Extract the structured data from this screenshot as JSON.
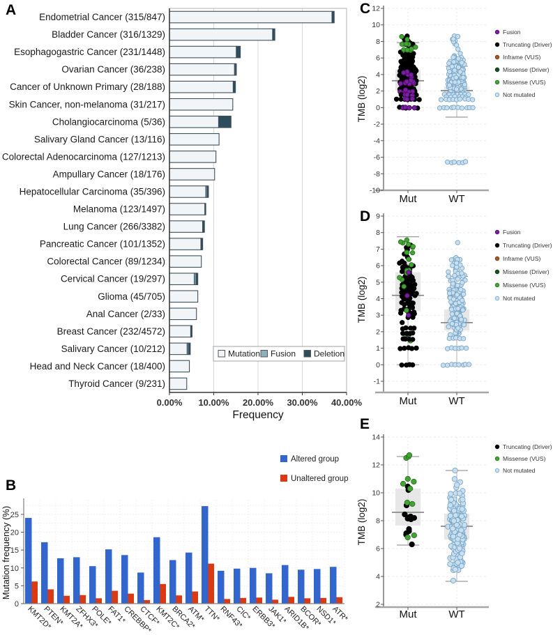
{
  "figure": {
    "background": "#ffffff"
  },
  "point_styles": {
    "fusion": {
      "label": "Fusion",
      "fill": "#7a1fa2",
      "stroke": "#4a0d66"
    },
    "truncating_driver": {
      "label": "Truncating (Driver)",
      "fill": "#000000",
      "stroke": "#000000"
    },
    "inframe_vus": {
      "label": "Inframe (VUS)",
      "fill": "#a05a2c",
      "stroke": "#6e3a14"
    },
    "missense_driver": {
      "label": "Missense (Driver)",
      "fill": "#14521c",
      "stroke": "#0b3511"
    },
    "missense_vus": {
      "label": "Missense (VUS)",
      "fill": "#42a432",
      "stroke": "#2a7220"
    },
    "not_mutated": {
      "label": "Not mutated",
      "fill": "#c9dff0",
      "stroke": "#79a7c7"
    }
  },
  "chart_data": [
    {
      "id": "A",
      "panel_label": "A",
      "type": "bar",
      "orientation": "horizontal",
      "stacked": true,
      "xlabel": "Frequency",
      "x_ticks": [
        "0.00%",
        "10.00%",
        "20.00%",
        "30.00%",
        "40.00%"
      ],
      "xlim": [
        0,
        40
      ],
      "bar_outline": "#3d4f5a",
      "legend": [
        {
          "label": "Mutation",
          "color": "#f1f5f8"
        },
        {
          "label": "Fusion",
          "color": "#8fafc0"
        },
        {
          "label": "Deletion",
          "color": "#2d4d5c"
        }
      ],
      "categories": [
        "Endometrial Cancer (315/847)",
        "Bladder Cancer (316/1329)",
        "Esophagogastric Cancer (231/1448)",
        "Ovarian Cancer (36/238)",
        "Cancer of Unknown Primary (28/188)",
        "Skin Cancer, non-melanoma (31/217)",
        "Cholangiocarcinoma (5/36)",
        "Salivary Gland Cancer (13/116)",
        "Colorectal Adenocarcinoma (127/1213)",
        "Ampullary Cancer (18/176)",
        "Hepatocellular Carcinoma (35/396)",
        "Melanoma (123/1497)",
        "Lung Cancer (266/3382)",
        "Pancreatic Cancer (101/1352)",
        "Colorectal Cancer (89/1234)",
        "Cervical Cancer (19/297)",
        "Glioma (45/705)",
        "Anal Cancer (2/33)",
        "Breast Cancer (232/4572)",
        "Salivary Cancer (10/212)",
        "Head and Neck Cancer (18/400)",
        "Thyroid Cancer (9/231)"
      ],
      "series": [
        {
          "name": "Mutation",
          "color": "#f1f5f8",
          "values": [
            36.7,
            23.3,
            15.1,
            14.7,
            14.4,
            14.3,
            11.1,
            11.2,
            10.5,
            10.2,
            8.2,
            8.0,
            7.5,
            7.1,
            7.2,
            5.6,
            6.4,
            6.1,
            4.8,
            4.0,
            4.5,
            3.9
          ]
        },
        {
          "name": "Fusion",
          "color": "#8fafc0",
          "values": [
            0,
            0,
            0,
            0.2,
            0,
            0,
            0,
            0,
            0,
            0,
            0.3,
            0,
            0,
            0,
            0,
            0.4,
            0,
            0,
            0,
            0.3,
            0,
            0
          ]
        },
        {
          "name": "Deletion",
          "color": "#2d4d5c",
          "values": [
            0.5,
            0.5,
            0.9,
            0.2,
            0.5,
            0,
            2.8,
            0,
            0,
            0,
            0.3,
            0.2,
            0.4,
            0.4,
            0,
            0.4,
            0,
            0,
            0.3,
            0.4,
            0,
            0
          ]
        }
      ]
    },
    {
      "id": "B",
      "panel_label": "B",
      "type": "bar",
      "grouped": true,
      "ylabel": "Mutation frequency (%)",
      "y_ticks": [
        0,
        5,
        10,
        15,
        20,
        25
      ],
      "ylim": [
        0,
        28.3
      ],
      "categories": [
        "KMT2D*",
        "PTEN*",
        "KMT2A*",
        "ZFHX3*",
        "POLE*",
        "FAT1*",
        "CREBBP*",
        "CTCF*",
        "KMT2C*",
        "BRCA2*",
        "ATM*",
        "TTN*",
        "RNF43*",
        "CIC*",
        "ERBB3*",
        "JAK1*",
        "ARID1B*",
        "BCOR*",
        "NSD1*",
        "ATR*"
      ],
      "series": [
        {
          "name": "Altered group",
          "color": "#3366cc",
          "values": [
            24,
            17.2,
            12.7,
            13,
            10.5,
            15.2,
            13.6,
            8.7,
            18.6,
            12.2,
            14.3,
            27.3,
            9.2,
            9.8,
            10,
            8.5,
            10.8,
            9.5,
            9.7,
            10.3
          ]
        },
        {
          "name": "Unaltered group",
          "color": "#dc3912",
          "values": [
            6.2,
            4,
            2.2,
            2.4,
            1.5,
            3.6,
            2.8,
            1,
            5.5,
            2.3,
            3.4,
            11.2,
            1.3,
            1.6,
            1.7,
            1.1,
            1.9,
            1.5,
            1.6,
            1.8
          ]
        }
      ]
    },
    {
      "id": "C",
      "panel_label": "C",
      "type": "scatter",
      "variant": "strip-box",
      "ylabel": "TMB (log2)",
      "ylim": [
        -10,
        12
      ],
      "ytick_step": 2,
      "x_categories": [
        "Mut",
        "WT"
      ],
      "legend": [
        "fusion",
        "truncating_driver",
        "inframe_vus",
        "missense_driver",
        "missense_vus",
        "not_mutated"
      ],
      "groups": [
        {
          "name": "Mut",
          "box": {
            "q1": 2.05,
            "median": 3.25,
            "q3": 4.6,
            "whisker_low": 0,
            "whisker_high": 7.85
          },
          "clouds": [
            {
              "style": "truncating_driver",
              "n": 225,
              "dist": "normal",
              "mean": 3.9,
              "sd": 1.3,
              "min": 1.45,
              "max": 6.6
            },
            {
              "style": "truncating_driver",
              "n": 15,
              "dist": "uniform",
              "min": 6.6,
              "max": 8.85
            },
            {
              "style": "fusion",
              "n": 18,
              "dist": "normal",
              "mean": 2.9,
              "sd": 1.0,
              "min": 1.5,
              "max": 4.6
            },
            {
              "style": "missense_vus",
              "n": 11,
              "dist": "uniform",
              "min": 6.9,
              "max": 8.6
            },
            {
              "style": "truncating_driver",
              "n": 5,
              "dist": "row",
              "y": 1.5
            },
            {
              "style": "fusion",
              "n": 3,
              "dist": "row",
              "y": 1.5
            },
            {
              "style": "truncating_driver",
              "n": 7,
              "dist": "row",
              "y": 1.0
            },
            {
              "style": "fusion",
              "n": 3,
              "dist": "row",
              "y": 1.0
            },
            {
              "style": "truncating_driver",
              "n": 6,
              "dist": "row",
              "y": 0
            },
            {
              "style": "fusion",
              "n": 4,
              "dist": "row",
              "y": 0
            }
          ]
        },
        {
          "name": "WT",
          "box": {
            "q1": 1.35,
            "median": 2.05,
            "q3": 2.55,
            "whisker_low": -1.15,
            "whisker_high": 5.0
          },
          "clouds": [
            {
              "style": "not_mutated",
              "n": 320,
              "dist": "normal",
              "mean": 3.0,
              "sd": 1.5,
              "min": 1.25,
              "max": 6.8
            },
            {
              "style": "not_mutated",
              "n": 9,
              "dist": "uniform",
              "min": 6.9,
              "max": 8.85
            },
            {
              "style": "not_mutated",
              "n": 7,
              "dist": "row",
              "y": 1.6
            },
            {
              "style": "not_mutated",
              "n": 6,
              "dist": "row",
              "y": 1.3
            },
            {
              "style": "not_mutated",
              "n": 9,
              "dist": "row",
              "y": 1.0
            },
            {
              "style": "not_mutated",
              "n": 10,
              "dist": "row",
              "y": 0
            },
            {
              "style": "not_mutated",
              "n": 6,
              "dist": "row",
              "y": -6.6
            }
          ]
        }
      ]
    },
    {
      "id": "D",
      "panel_label": "D",
      "type": "scatter",
      "variant": "strip-box",
      "ylabel": "TMB (log2)",
      "ylim": [
        -1,
        9
      ],
      "ytick_step": 1,
      "x_categories": [
        "Mut",
        "WT"
      ],
      "legend": [
        "fusion",
        "truncating_driver",
        "inframe_vus",
        "missense_driver",
        "missense_vus",
        "not_mutated"
      ],
      "groups": [
        {
          "name": "Mut",
          "box": {
            "q1": 3.25,
            "median": 4.2,
            "q3": 5.6,
            "whisker_low": 0,
            "whisker_high": 7.75
          },
          "clouds": [
            {
              "style": "truncating_driver",
              "n": 125,
              "dist": "normal",
              "mean": 4.7,
              "sd": 1.15,
              "min": 2.4,
              "max": 7.4
            },
            {
              "style": "missense_vus",
              "n": 17,
              "dist": "uniform",
              "min": 4.6,
              "max": 7.75
            },
            {
              "style": "missense_vus",
              "n": 5,
              "dist": "uniform",
              "min": 1.0,
              "max": 3.3
            },
            {
              "style": "fusion",
              "n": 1,
              "dist": "row",
              "y": 5.6
            },
            {
              "style": "fusion",
              "n": 1,
              "dist": "row",
              "y": 4.2
            },
            {
              "style": "fusion",
              "n": 1,
              "dist": "row",
              "y": 3.0
            },
            {
              "style": "fusion",
              "n": 1,
              "dist": "row",
              "y": 1.6
            },
            {
              "style": "truncating_driver",
              "n": 4,
              "dist": "row",
              "y": 2.2
            },
            {
              "style": "truncating_driver",
              "n": 4,
              "dist": "row",
              "y": 1.9
            },
            {
              "style": "truncating_driver",
              "n": 4,
              "dist": "row",
              "y": 1.55
            },
            {
              "style": "truncating_driver",
              "n": 5,
              "dist": "row",
              "y": 1.0
            },
            {
              "style": "truncating_driver",
              "n": 4,
              "dist": "row",
              "y": 0
            }
          ]
        },
        {
          "name": "WT",
          "box": {
            "q1": 2.08,
            "median": 2.55,
            "q3": 3.35,
            "whisker_low": 0,
            "whisker_high": 5.35
          },
          "clouds": [
            {
              "style": "not_mutated",
              "n": 245,
              "dist": "normal",
              "mean": 3.5,
              "sd": 1.25,
              "min": 1.8,
              "max": 6.6
            },
            {
              "style": "not_mutated",
              "n": 1,
              "dist": "row",
              "y": 7.4
            },
            {
              "style": "not_mutated",
              "n": 5,
              "dist": "row",
              "y": 1.6
            },
            {
              "style": "not_mutated",
              "n": 6,
              "dist": "row",
              "y": 1.0
            },
            {
              "style": "not_mutated",
              "n": 8,
              "dist": "row",
              "y": 0
            }
          ]
        }
      ]
    },
    {
      "id": "E",
      "panel_label": "E",
      "type": "scatter",
      "variant": "strip-box",
      "ylabel": "TMB (log2)",
      "ylim": [
        2,
        14
      ],
      "ytick_step": 2,
      "x_categories": [
        "Mut",
        "WT"
      ],
      "legend": [
        "truncating_driver",
        "missense_vus",
        "not_mutated"
      ],
      "groups": [
        {
          "name": "Mut",
          "box": {
            "q1": 7.65,
            "median": 8.6,
            "q3": 10.3,
            "whisker_low": 6.25,
            "whisker_high": 12.6
          },
          "clouds": [
            {
              "style": "truncating_driver",
              "dist": "points",
              "values": [
                6.3,
                7.0,
                7.1,
                7.25,
                7.4,
                8.1,
                8.15,
                8.2,
                8.25,
                8.3,
                8.45,
                9.1,
                10.2,
                10.45
              ]
            },
            {
              "style": "missense_vus",
              "dist": "points",
              "values": [
                6.8,
                6.95,
                9.2,
                9.3,
                10.3,
                10.65,
                10.8,
                11.0,
                12.5,
                12.6,
                12.7
              ]
            }
          ]
        },
        {
          "name": "WT",
          "box": {
            "q1": 6.65,
            "median": 7.6,
            "q3": 8.5,
            "whisker_low": 3.65,
            "whisker_high": 11.6
          },
          "clouds": [
            {
              "style": "not_mutated",
              "n": 195,
              "dist": "normal",
              "mean": 7.5,
              "sd": 1.35,
              "min": 4.4,
              "max": 11.3
            },
            {
              "style": "not_mutated",
              "dist": "points",
              "values": [
                3.7,
                11.6,
                4.6,
                4.5,
                5.0
              ]
            }
          ]
        }
      ]
    }
  ]
}
